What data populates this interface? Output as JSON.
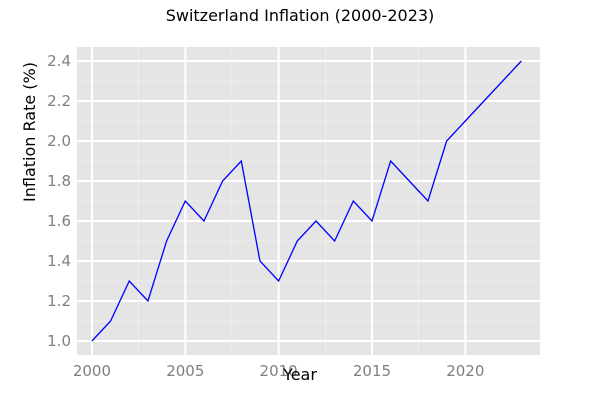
{
  "chart_data": {
    "type": "line",
    "title": "Switzerland Inflation (2000-2023)",
    "xlabel": "Year",
    "ylabel": "Inflation Rate (%)",
    "x": [
      2000,
      2001,
      2002,
      2003,
      2004,
      2005,
      2006,
      2007,
      2008,
      2009,
      2010,
      2011,
      2012,
      2013,
      2014,
      2015,
      2016,
      2017,
      2018,
      2019,
      2020,
      2021,
      2022,
      2023
    ],
    "series": [
      {
        "values": [
          1.0,
          1.1,
          1.3,
          1.2,
          1.5,
          1.7,
          1.6,
          1.8,
          1.9,
          1.4,
          1.3,
          1.5,
          1.6,
          1.5,
          1.7,
          1.6,
          1.9,
          1.8,
          1.7,
          2.0,
          2.1,
          2.2,
          2.3,
          2.4
        ],
        "color": "#0000ff"
      }
    ],
    "xlim": [
      1999.2,
      2024.0
    ],
    "ylim": [
      0.93,
      2.47
    ],
    "xticks": [
      2000,
      2005,
      2010,
      2015,
      2020
    ],
    "xtick_labels": [
      "2000",
      "2005",
      "2010",
      "2015",
      "2020"
    ],
    "yticks": [
      1.0,
      1.2,
      1.4,
      1.6,
      1.8,
      2.0,
      2.2,
      2.4
    ],
    "ytick_labels": [
      "1.0",
      "1.2",
      "1.4",
      "1.6",
      "1.8",
      "2.0",
      "2.2",
      "2.4"
    ],
    "grid": true,
    "legend": false,
    "colors": {
      "panel": "#e5e5e5",
      "grid": "#ffffff",
      "tick_text": "#7f7f7f"
    }
  }
}
